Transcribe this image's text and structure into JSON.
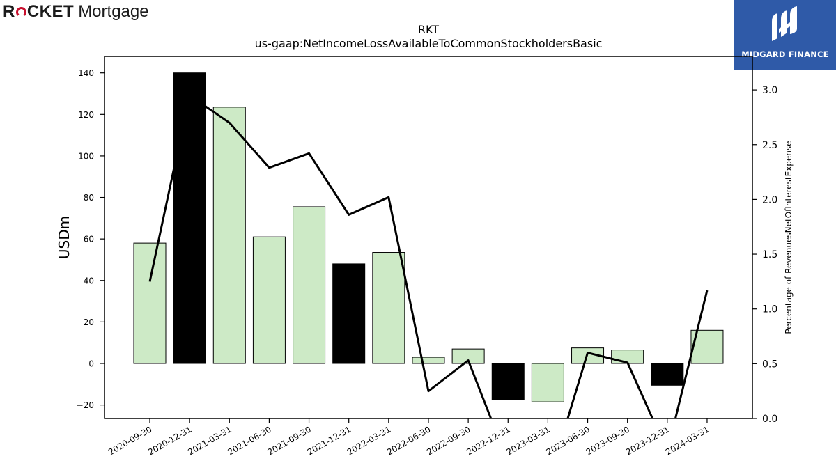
{
  "brand": {
    "left": "R",
    "right": "CKET",
    "tail": "Mortgage"
  },
  "watermark": {
    "label": "MIDGARD FINANCE"
  },
  "colors": {
    "bar_light": "#cdeac6",
    "bar_dark": "#000000",
    "line": "#000000",
    "brand_red": "#c8102e",
    "watermark_bg": "#2f5aa8"
  },
  "chart_data": {
    "type": "bar",
    "title": "RKT",
    "subtitle": "us-gaap:NetIncomeLossAvailableToCommonStockholdersBasic",
    "ylabel": "USDm",
    "y2label": "Percentage of RevenuesNetOfInterestExpense",
    "categories": [
      "2020-09-30",
      "2020-12-31",
      "2021-03-31",
      "2021-06-30",
      "2021-09-30",
      "2021-12-31",
      "2022-03-31",
      "2022-06-30",
      "2022-09-30",
      "2022-12-31",
      "2023-03-31",
      "2023-06-30",
      "2023-09-30",
      "2023-12-31",
      "2024-03-31"
    ],
    "ylim": [
      -26,
      148
    ],
    "y2lim": [
      0.0,
      3.3
    ],
    "yticks": [
      -20,
      0,
      20,
      40,
      60,
      80,
      100,
      120,
      140
    ],
    "y2ticks": [
      "0.0",
      "0.5",
      "1.0",
      "1.5",
      "2.0",
      "2.5",
      "3.0"
    ],
    "series": [
      {
        "type": "bar",
        "values": [
          58,
          140,
          123.5,
          61,
          75.5,
          48,
          53.5,
          3,
          7,
          -17.5,
          -18.5,
          7.5,
          6.5,
          -10.5,
          16
        ],
        "highlight": [
          false,
          true,
          false,
          false,
          false,
          true,
          false,
          false,
          false,
          true,
          false,
          false,
          false,
          true,
          false
        ]
      },
      {
        "type": "line",
        "axis": "right",
        "values": [
          1.25,
          2.95,
          2.7,
          2.29,
          2.42,
          1.86,
          2.02,
          0.25,
          0.53,
          -0.4,
          -0.6,
          0.6,
          0.51,
          -0.3,
          1.17
        ]
      }
    ]
  }
}
